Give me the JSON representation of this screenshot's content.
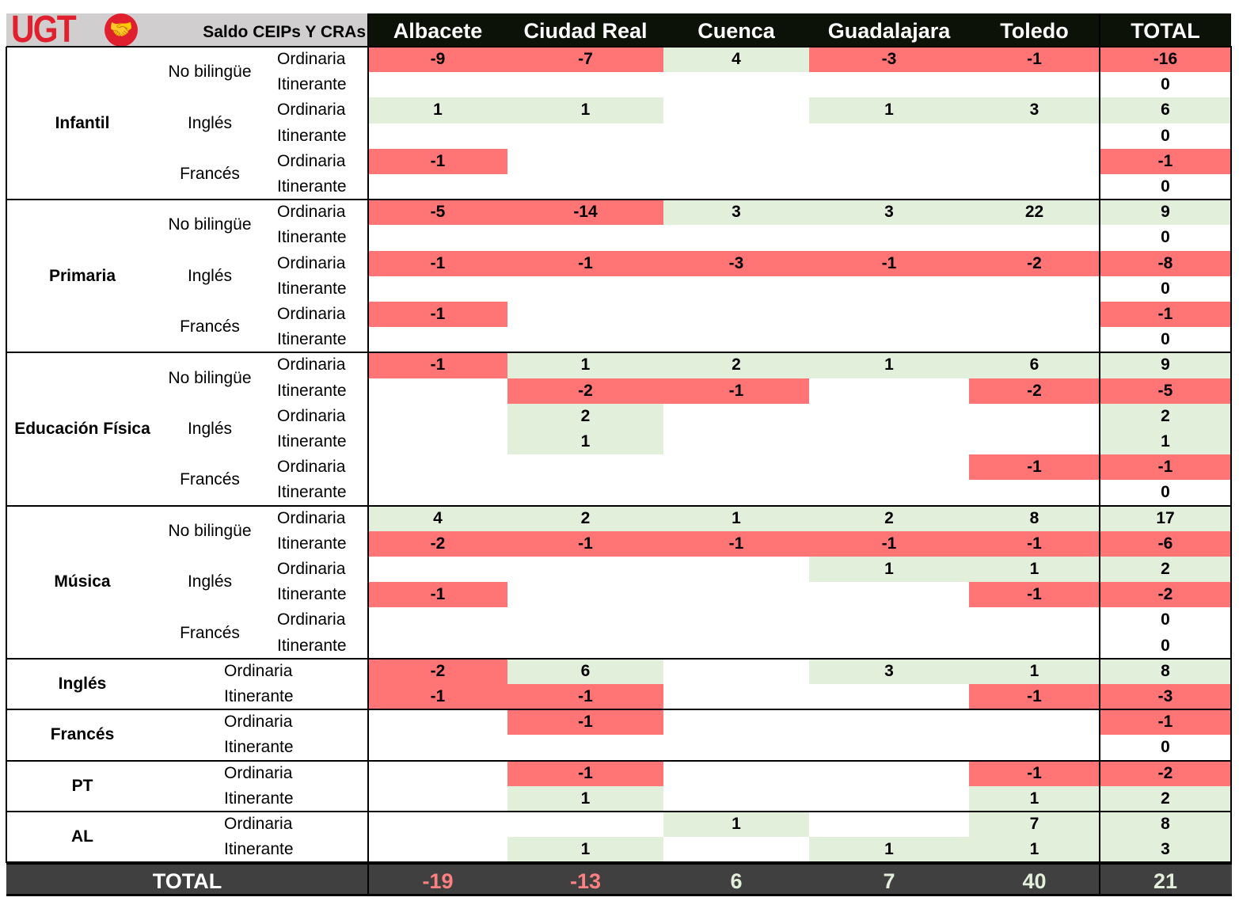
{
  "header": {
    "logo_text": "UGT",
    "title": "Saldo CEIPs Y CRAs",
    "columns": [
      "Albacete",
      "Ciudad Real",
      "Cuenca",
      "Guadalajara",
      "Toledo",
      "TOTAL"
    ]
  },
  "colors": {
    "negative": "#ff7575",
    "positive": "#e2efda",
    "total_negative_text": "#ff8080",
    "total_positive_text": "#e2efda"
  },
  "groups": [
    {
      "label": "Infantil",
      "subgroups": [
        {
          "label": "No bilingüe",
          "rows": [
            {
              "type": "Ordinaria",
              "values": [
                "-9",
                "-7",
                "4",
                "-3",
                "-1",
                "-16"
              ]
            },
            {
              "type": "Itinerante",
              "values": [
                "",
                "",
                "",
                "",
                "",
                "0"
              ]
            }
          ]
        },
        {
          "label": "Inglés",
          "rows": [
            {
              "type": "Ordinaria",
              "values": [
                "1",
                "1",
                "",
                "1",
                "3",
                "6"
              ]
            },
            {
              "type": "Itinerante",
              "values": [
                "",
                "",
                "",
                "",
                "",
                "0"
              ]
            }
          ]
        },
        {
          "label": "Francés",
          "rows": [
            {
              "type": "Ordinaria",
              "values": [
                "-1",
                "",
                "",
                "",
                "",
                "-1"
              ]
            },
            {
              "type": "Itinerante",
              "values": [
                "",
                "",
                "",
                "",
                "",
                "0"
              ]
            }
          ]
        }
      ]
    },
    {
      "label": "Primaria",
      "subgroups": [
        {
          "label": "No bilingüe",
          "rows": [
            {
              "type": "Ordinaria",
              "values": [
                "-5",
                "-14",
                "3",
                "3",
                "22",
                "9"
              ]
            },
            {
              "type": "Itinerante",
              "values": [
                "",
                "",
                "",
                "",
                "",
                "0"
              ]
            }
          ]
        },
        {
          "label": "Inglés",
          "rows": [
            {
              "type": "Ordinaria",
              "values": [
                "-1",
                "-1",
                "-3",
                "-1",
                "-2",
                "-8"
              ]
            },
            {
              "type": "Itinerante",
              "values": [
                "",
                "",
                "",
                "",
                "",
                "0"
              ]
            }
          ]
        },
        {
          "label": "Francés",
          "rows": [
            {
              "type": "Ordinaria",
              "values": [
                "-1",
                "",
                "",
                "",
                "",
                "-1"
              ]
            },
            {
              "type": "Itinerante",
              "values": [
                "",
                "",
                "",
                "",
                "",
                "0"
              ]
            }
          ]
        }
      ]
    },
    {
      "label": "Educación Física",
      "subgroups": [
        {
          "label": "No bilingüe",
          "rows": [
            {
              "type": "Ordinaria",
              "values": [
                "-1",
                "1",
                "2",
                "1",
                "6",
                "9"
              ]
            },
            {
              "type": "Itinerante",
              "values": [
                "",
                "-2",
                "-1",
                "",
                "-2",
                "-5"
              ]
            }
          ]
        },
        {
          "label": "Inglés",
          "rows": [
            {
              "type": "Ordinaria",
              "values": [
                "",
                "2",
                "",
                "",
                "",
                "2"
              ]
            },
            {
              "type": "Itinerante",
              "values": [
                "",
                "1",
                "",
                "",
                "",
                "1"
              ]
            }
          ]
        },
        {
          "label": "Francés",
          "rows": [
            {
              "type": "Ordinaria",
              "values": [
                "",
                "",
                "",
                "",
                "-1",
                "-1"
              ]
            },
            {
              "type": "Itinerante",
              "values": [
                "",
                "",
                "",
                "",
                "",
                "0"
              ]
            }
          ]
        }
      ]
    },
    {
      "label": "Música",
      "subgroups": [
        {
          "label": "No bilingüe",
          "rows": [
            {
              "type": "Ordinaria",
              "values": [
                "4",
                "2",
                "1",
                "2",
                "8",
                "17"
              ]
            },
            {
              "type": "Itinerante",
              "values": [
                "-2",
                "-1",
                "-1",
                "-1",
                "-1",
                "-6"
              ]
            }
          ]
        },
        {
          "label": "Inglés",
          "rows": [
            {
              "type": "Ordinaria",
              "values": [
                "",
                "",
                "",
                "1",
                "1",
                "2"
              ]
            },
            {
              "type": "Itinerante",
              "values": [
                "-1",
                "",
                "",
                "",
                "-1",
                "-2"
              ]
            }
          ]
        },
        {
          "label": "Francés",
          "rows": [
            {
              "type": "Ordinaria",
              "values": [
                "",
                "",
                "",
                "",
                "",
                "0"
              ]
            },
            {
              "type": "Itinerante",
              "values": [
                "",
                "",
                "",
                "",
                "",
                "0"
              ]
            }
          ]
        }
      ]
    },
    {
      "label": "Inglés",
      "subgroups": [
        {
          "label": "",
          "rows": [
            {
              "type": "Ordinaria",
              "values": [
                "-2",
                "6",
                "",
                "3",
                "1",
                "8"
              ]
            },
            {
              "type": "Itinerante",
              "values": [
                "-1",
                "-1",
                "",
                "",
                "-1",
                "-3"
              ]
            }
          ]
        }
      ]
    },
    {
      "label": "Francés",
      "subgroups": [
        {
          "label": "",
          "rows": [
            {
              "type": "Ordinaria",
              "values": [
                "",
                "-1",
                "",
                "",
                "",
                "-1"
              ]
            },
            {
              "type": "Itinerante",
              "values": [
                "",
                "",
                "",
                "",
                "",
                "0"
              ]
            }
          ]
        }
      ]
    },
    {
      "label": "PT",
      "subgroups": [
        {
          "label": "",
          "rows": [
            {
              "type": "Ordinaria",
              "values": [
                "",
                "-1",
                "",
                "",
                "-1",
                "-2"
              ]
            },
            {
              "type": "Itinerante",
              "values": [
                "",
                "1",
                "",
                "",
                "1",
                "2"
              ]
            }
          ]
        }
      ]
    },
    {
      "label": "AL",
      "subgroups": [
        {
          "label": "",
          "rows": [
            {
              "type": "Ordinaria",
              "values": [
                "",
                "",
                "1",
                "",
                "7",
                "8"
              ]
            },
            {
              "type": "Itinerante",
              "values": [
                "",
                "1",
                "",
                "1",
                "1",
                "3"
              ]
            }
          ]
        }
      ]
    }
  ],
  "total": {
    "label": "TOTAL",
    "values": [
      "-19",
      "-13",
      "6",
      "7",
      "40",
      "21"
    ]
  }
}
